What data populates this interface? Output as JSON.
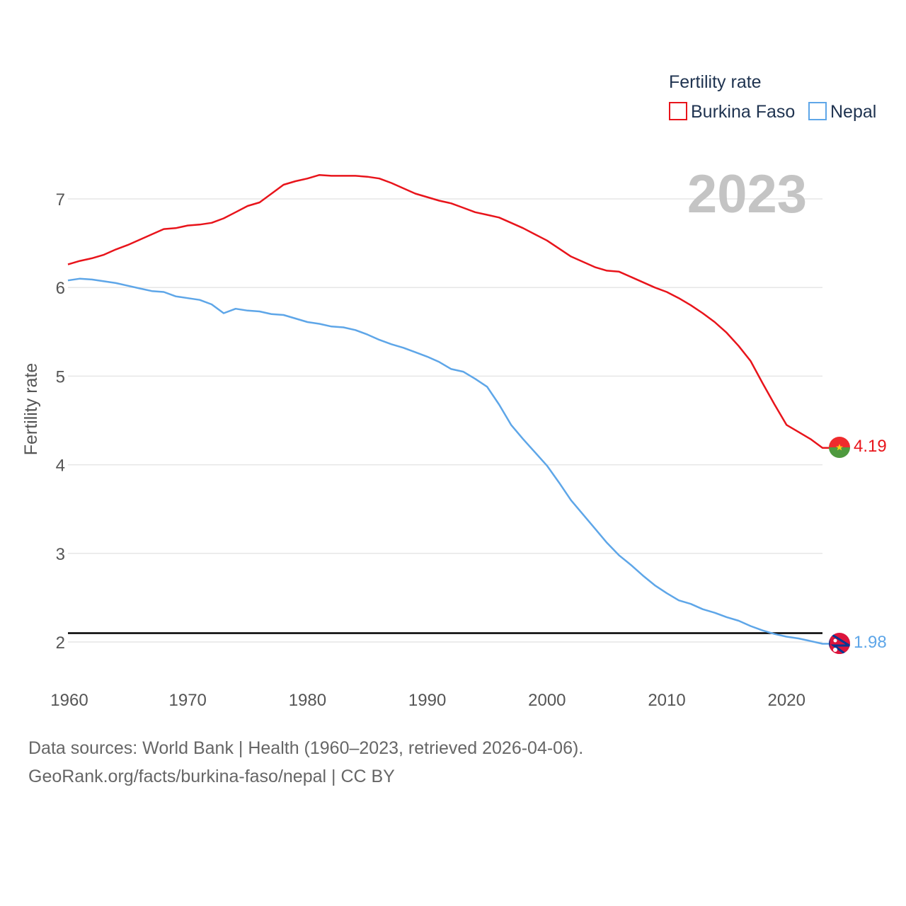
{
  "chart_data": {
    "type": "line",
    "title": "",
    "legend_title": "Fertility rate",
    "xlabel": "",
    "ylabel": "Fertility rate",
    "current_year": "2023",
    "xlim": [
      1960,
      2023
    ],
    "ylim": [
      1.6,
      7.6
    ],
    "x_ticks": [
      1960,
      1970,
      1980,
      1990,
      2000,
      2010,
      2020
    ],
    "y_ticks": [
      2,
      3,
      4,
      5,
      6,
      7
    ],
    "reference_line": 2.1,
    "legend_position": "top-right",
    "x": [
      1960,
      1961,
      1962,
      1963,
      1964,
      1965,
      1966,
      1967,
      1968,
      1969,
      1970,
      1971,
      1972,
      1973,
      1974,
      1975,
      1976,
      1977,
      1978,
      1979,
      1980,
      1981,
      1982,
      1983,
      1984,
      1985,
      1986,
      1987,
      1988,
      1989,
      1990,
      1991,
      1992,
      1993,
      1994,
      1995,
      1996,
      1997,
      1998,
      1999,
      2000,
      2001,
      2002,
      2003,
      2004,
      2005,
      2006,
      2007,
      2008,
      2009,
      2010,
      2011,
      2012,
      2013,
      2014,
      2015,
      2016,
      2017,
      2018,
      2019,
      2020,
      2021,
      2022,
      2023
    ],
    "series": [
      {
        "name": "Burkina Faso",
        "color": "#e8141b",
        "end_label": "4.19",
        "values": [
          6.26,
          6.3,
          6.33,
          6.37,
          6.43,
          6.48,
          6.54,
          6.6,
          6.66,
          6.67,
          6.7,
          6.71,
          6.73,
          6.78,
          6.85,
          6.92,
          6.96,
          7.06,
          7.16,
          7.2,
          7.23,
          7.27,
          7.26,
          7.26,
          7.26,
          7.25,
          7.23,
          7.18,
          7.12,
          7.06,
          7.02,
          6.98,
          6.95,
          6.9,
          6.85,
          6.82,
          6.79,
          6.73,
          6.67,
          6.6,
          6.53,
          6.44,
          6.35,
          6.29,
          6.23,
          6.19,
          6.18,
          6.12,
          6.06,
          6.0,
          5.95,
          5.88,
          5.8,
          5.71,
          5.61,
          5.49,
          5.34,
          5.17,
          4.92,
          4.68,
          4.45,
          4.37,
          4.29,
          4.19
        ]
      },
      {
        "name": "Nepal",
        "color": "#5ea6e8",
        "end_label": "1.98",
        "values": [
          6.08,
          6.1,
          6.09,
          6.07,
          6.05,
          6.02,
          5.99,
          5.96,
          5.95,
          5.9,
          5.88,
          5.86,
          5.81,
          5.71,
          5.76,
          5.74,
          5.73,
          5.7,
          5.69,
          5.65,
          5.61,
          5.59,
          5.56,
          5.55,
          5.52,
          5.47,
          5.41,
          5.36,
          5.32,
          5.27,
          5.22,
          5.16,
          5.08,
          5.05,
          4.97,
          4.88,
          4.68,
          4.45,
          4.29,
          4.14,
          3.99,
          3.8,
          3.6,
          3.44,
          3.28,
          3.12,
          2.98,
          2.87,
          2.75,
          2.64,
          2.55,
          2.47,
          2.43,
          2.37,
          2.33,
          2.28,
          2.24,
          2.18,
          2.13,
          2.09,
          2.06,
          2.04,
          2.01,
          1.98
        ]
      }
    ]
  },
  "footer": {
    "line1": "Data sources: World Bank | Health (1960–2023, retrieved 2026-04-06).",
    "line2": "GeoRank.org/facts/burkina-faso/nepal | CC BY"
  },
  "flags": [
    {
      "country": "Burkina Faso",
      "icon": "burkina-faso-flag-icon",
      "colors": [
        "#ef2b2d",
        "#009e49",
        "#fcd116"
      ]
    },
    {
      "country": "Nepal",
      "icon": "nepal-flag-icon",
      "colors": [
        "#dc143c",
        "#003893",
        "#ffffff"
      ]
    }
  ]
}
